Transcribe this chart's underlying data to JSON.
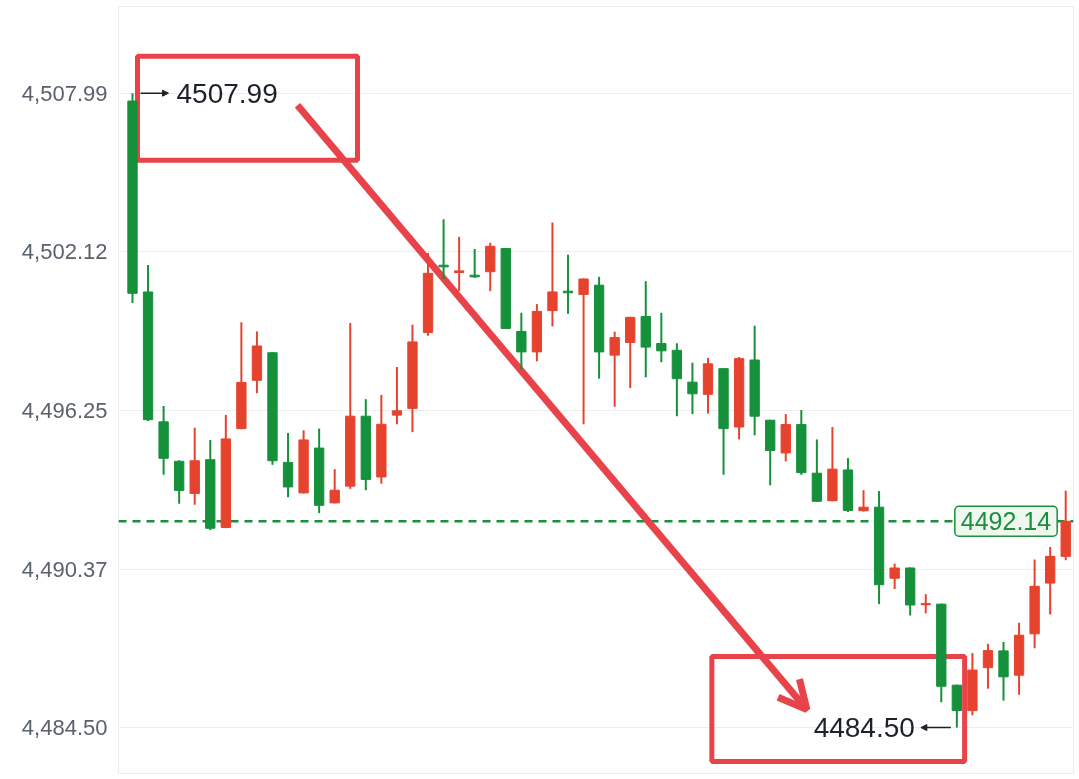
{
  "chart_data": {
    "type": "candlestick",
    "categories": [
      null,
      null,
      null,
      null,
      null,
      null,
      null,
      null,
      null,
      null,
      null,
      null,
      null,
      null,
      null,
      null,
      null,
      null,
      null,
      null,
      null,
      null,
      null,
      null,
      null,
      null,
      null,
      null,
      null,
      null,
      null,
      null,
      null,
      null,
      null,
      null,
      null,
      null,
      null,
      null,
      null,
      null,
      null,
      null,
      null,
      null,
      null,
      null,
      null,
      null,
      null,
      null,
      null,
      null,
      null,
      null,
      null,
      null,
      null,
      null,
      null
    ],
    "ohlc": [
      [
        4507.7,
        4507.99,
        4500.22,
        4500.58
      ],
      [
        4500.63,
        4501.63,
        4495.85,
        4495.9
      ],
      [
        4495.82,
        4496.41,
        4493.86,
        4494.47
      ],
      [
        4494.36,
        4494.4,
        4492.79,
        4493.28
      ],
      [
        4493.17,
        4495.6,
        4492.75,
        4494.38
      ],
      [
        4494.42,
        4495.15,
        4491.82,
        4491.88
      ],
      [
        4491.91,
        4496.07,
        4491.88,
        4495.19
      ],
      [
        4495.57,
        4499.51,
        4495.55,
        4497.28
      ],
      [
        4497.36,
        4499.17,
        4496.88,
        4498.63
      ],
      [
        4498.38,
        4498.4,
        4494.23,
        4494.38
      ],
      [
        4494.32,
        4495.41,
        4493.03,
        4493.41
      ],
      [
        4493.19,
        4495.51,
        4493.17,
        4495.15
      ],
      [
        4494.85,
        4495.57,
        4492.44,
        4492.73
      ],
      [
        4492.82,
        4494.07,
        4492.8,
        4493.29
      ],
      [
        4493.44,
        4499.48,
        4493.34,
        4496.03
      ],
      [
        4496.03,
        4496.66,
        4493.29,
        4493.69
      ],
      [
        4493.78,
        4496.82,
        4493.53,
        4495.73
      ],
      [
        4496.07,
        4497.85,
        4495.73,
        4496.23
      ],
      [
        4496.32,
        4499.42,
        4495.44,
        4498.78
      ],
      [
        4499.13,
        4502.07,
        4499.01,
        4501.32
      ],
      [
        4501.62,
        4503.32,
        4501.11,
        4501.56
      ],
      [
        4501.35,
        4502.67,
        4500.67,
        4501.41
      ],
      [
        4501.25,
        4502.22,
        4501.15,
        4501.19
      ],
      [
        4501.38,
        4502.45,
        4500.66,
        4502.32
      ],
      [
        4502.24,
        4502.26,
        4499.26,
        4499.28
      ],
      [
        4499.17,
        4499.86,
        4497.76,
        4498.41
      ],
      [
        4498.41,
        4500.18,
        4498.06,
        4499.91
      ],
      [
        4499.94,
        4503.2,
        4499.36,
        4500.63
      ],
      [
        4500.66,
        4502.01,
        4499.82,
        4500.6
      ],
      [
        4500.54,
        4501.13,
        4495.73,
        4501.11
      ],
      [
        4500.88,
        4501.19,
        4497.42,
        4498.41
      ],
      [
        4498.29,
        4499.16,
        4496.38,
        4498.94
      ],
      [
        4498.76,
        4499.71,
        4497.07,
        4499.69
      ],
      [
        4499.72,
        4501.03,
        4497.47,
        4498.59
      ],
      [
        4498.72,
        4499.86,
        4498.03,
        4498.45
      ],
      [
        4498.47,
        4498.73,
        4496.03,
        4497.42
      ],
      [
        4497.29,
        4498.01,
        4496.11,
        4496.86
      ],
      [
        4496.84,
        4498.19,
        4496.13,
        4497.97
      ],
      [
        4497.79,
        4497.81,
        4493.86,
        4495.57
      ],
      [
        4495.63,
        4498.22,
        4495.17,
        4498.16
      ],
      [
        4498.11,
        4499.38,
        4495.32,
        4496.03
      ],
      [
        4495.88,
        4495.9,
        4493.47,
        4494.76
      ],
      [
        4494.67,
        4496.11,
        4494.36,
        4495.72
      ],
      [
        4495.72,
        4496.26,
        4493.86,
        4493.94
      ],
      [
        4493.92,
        4495.17,
        4492.86,
        4492.88
      ],
      [
        4492.9,
        4495.63,
        4492.88,
        4494.07
      ],
      [
        4494.04,
        4494.48,
        4492.48,
        4492.54
      ],
      [
        4492.53,
        4493.29,
        4492.5,
        4492.66
      ],
      [
        4492.66,
        4493.26,
        4489.07,
        4489.79
      ],
      [
        4490.03,
        4490.57,
        4489.63,
        4490.41
      ],
      [
        4490.41,
        4490.43,
        4488.65,
        4489.04
      ],
      [
        4489.05,
        4489.44,
        4488.73,
        4489.09
      ],
      [
        4489.07,
        4489.09,
        4485.44,
        4486.03
      ],
      [
        4486.07,
        4486.09,
        4484.5,
        4485.13
      ],
      [
        4485.13,
        4487.26,
        4484.95,
        4486.63
      ],
      [
        4486.72,
        4487.6,
        4485.94,
        4487.35
      ],
      [
        4487.34,
        4487.67,
        4485.5,
        4486.38
      ],
      [
        4486.44,
        4488.38,
        4485.72,
        4487.92
      ],
      [
        4487.97,
        4490.72,
        4487.44,
        4489.73
      ],
      [
        4489.85,
        4491.19,
        4488.69,
        4490.84
      ],
      [
        4490.84,
        4493.27,
        4490.7,
        4492.14
      ]
    ],
    "colors": [
      "#16913b",
      "#16913b",
      "#16913b",
      "#16913b",
      "#e6432e",
      "#16913b",
      "#e6432e",
      "#e6432e",
      "#e6432e",
      "#16913b",
      "#16913b",
      "#e6432e",
      "#16913b",
      "#e6432e",
      "#e6432e",
      "#16913b",
      "#e6432e",
      "#e6432e",
      "#e6432e",
      "#e6432e",
      "#16913b",
      "#e6432e",
      "#16913b",
      "#e6432e",
      "#16913b",
      "#16913b",
      "#e6432e",
      "#e6432e",
      "#16913b",
      "#e6432e",
      "#16913b",
      "#e6432e",
      "#e6432e",
      "#16913b",
      "#16913b",
      "#16913b",
      "#16913b",
      "#e6432e",
      "#16913b",
      "#e6432e",
      "#16913b",
      "#16913b",
      "#e6432e",
      "#16913b",
      "#16913b",
      "#e6432e",
      "#16913b",
      "#e6432e",
      "#16913b",
      "#e6432e",
      "#16913b",
      "#e6432e",
      "#16913b",
      "#16913b",
      "#e6432e",
      "#e6432e",
      "#16913b",
      "#e6432e",
      "#e6432e",
      "#e6432e",
      "#e6432e"
    ],
    "ylim": [
      4482.8,
      4511.2
    ],
    "yticks": [
      {
        "value": 4484.5,
        "label": "4,484.50"
      },
      {
        "value": 4490.37,
        "label": "4,490.37"
      },
      {
        "value": 4496.25,
        "label": "4,496.25"
      },
      {
        "value": 4502.12,
        "label": "4,502.12"
      },
      {
        "value": 4507.99,
        "label": "4,507.99"
      }
    ],
    "tick_labels": "y",
    "grid": "y",
    "ref_lines": [
      {
        "axis": "y",
        "value": 4492.14,
        "label": "4492.14",
        "color": "#1a8f3c",
        "line_style": "dashed"
      }
    ],
    "annotations": [
      "4507.99",
      "4484.50"
    ]
  }
}
